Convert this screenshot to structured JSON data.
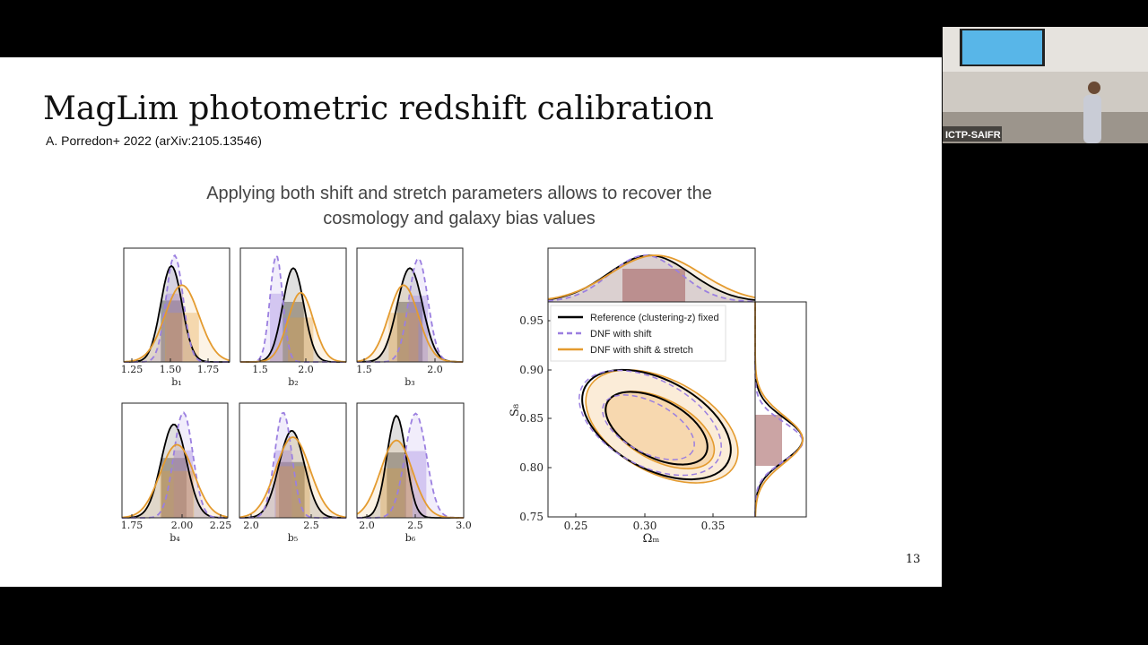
{
  "slide": {
    "title": "MagLim photometric redshift calibration",
    "citation": "A. Porredon+ 2022 (arXiv:2105.13546)",
    "subtitle": [
      "Applying both shift and stretch parameters allows to recover the",
      "cosmology and galaxy bias values"
    ],
    "page_number": "13"
  },
  "panels": [
    {
      "label": "b₁",
      "ticks": [
        "1.25",
        "1.50",
        "1.75"
      ]
    },
    {
      "label": "b₂",
      "ticks": [
        "1.5",
        "2.0"
      ]
    },
    {
      "label": "b₃",
      "ticks": [
        "1.5",
        "2.0"
      ]
    },
    {
      "label": "b₄",
      "ticks": [
        "1.75",
        "2.00",
        "2.25"
      ]
    },
    {
      "label": "b₅",
      "ticks": [
        "2.0",
        "2.5"
      ]
    },
    {
      "label": "b₆",
      "ticks": [
        "2.0",
        "2.5",
        "3.0"
      ]
    }
  ],
  "contour": {
    "xlabel": "Ωₘ",
    "ylabel": "S₈",
    "xticks": [
      "0.25",
      "0.30",
      "0.35"
    ],
    "yticks": [
      "0.95",
      "0.90",
      "0.85",
      "0.80",
      "0.75"
    ],
    "legend": [
      "Reference (clustering-z) fixed",
      "DNF with shift",
      "DNF with shift & stretch"
    ]
  },
  "video": {
    "caption": "ICTP-SAIFR"
  }
}
